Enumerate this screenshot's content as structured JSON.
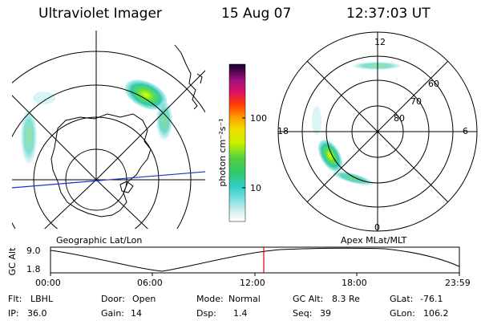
{
  "header": {
    "instrument": "Ultraviolet Imager",
    "date": "15 Aug 07",
    "time": "12:37:03 UT"
  },
  "colorbar": {
    "unit_label": "photon cm⁻²s⁻¹",
    "ticks": [
      "100",
      "10"
    ]
  },
  "left_panel": {
    "caption": "Geographic Lat/Lon",
    "map": "geographic-projection-southern-hemisphere"
  },
  "right_panel": {
    "caption": "Apex MLat/MLT",
    "mlt_labels": {
      "top": "12",
      "left": "18",
      "right": "6",
      "bottom": "0"
    },
    "lat_labels": [
      "60",
      "70",
      "80"
    ]
  },
  "altitude_plot": {
    "ylabel": "GC Alt",
    "yticks": [
      "9.0",
      "1.8"
    ],
    "xticks": [
      "00:00",
      "06:00",
      "12:00",
      "18:00",
      "23:59"
    ],
    "marker_time": "12:37:03",
    "marker_color": "#e00000"
  },
  "footer": {
    "filter_label": "Flt:",
    "filter_value": "LBHL",
    "ip_label": "IP:",
    "ip_value": "36.0",
    "door_label": "Door:",
    "door_value": "Open",
    "gain_label": "Gain:",
    "gain_value": "14",
    "mode_label": "Mode:",
    "mode_value": "Normal",
    "dsp_label": "Dsp:",
    "dsp_value": "1.4",
    "gcalt_label": "GC Alt:",
    "gcalt_value": "8.3 Re",
    "seq_label": "Seq:",
    "seq_value": "39",
    "glat_label": "GLat:",
    "glat_value": "-76.1",
    "glon_label": "GLon:",
    "glon_value": "106.2"
  }
}
